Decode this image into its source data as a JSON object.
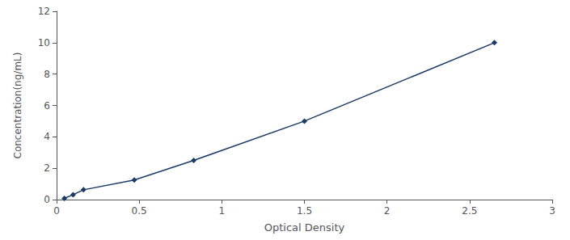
{
  "chart_data": {
    "type": "line",
    "x": [
      0.047,
      0.1,
      0.163,
      0.47,
      0.83,
      1.5,
      2.65
    ],
    "values": [
      0.078,
      0.313,
      0.625,
      1.25,
      2.5,
      5.0,
      10.0
    ],
    "color": "#1A3A6B",
    "marker": "diamond",
    "line_style": "solid",
    "xlabel": "Optical Density",
    "ylabel": "Concentration(ng/mL)",
    "xlim": [
      0,
      3
    ],
    "ylim": [
      0,
      12
    ],
    "xticks": [
      0,
      0.5,
      1,
      1.5,
      2,
      2.5,
      3
    ],
    "yticks": [
      0,
      2,
      4,
      6,
      8,
      10,
      12
    ],
    "grid": false
  }
}
